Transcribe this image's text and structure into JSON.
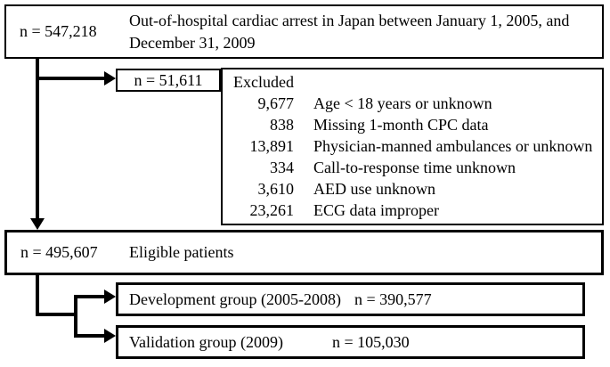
{
  "colors": {
    "border": "#000000",
    "text": "#000000",
    "background": "#ffffff"
  },
  "flow": {
    "top_box": {
      "n_label": "n = 547,218",
      "description": "Out-of-hospital cardiac arrest in Japan between January 1, 2005, and December 31, 2009"
    },
    "excluded_n_box": {
      "n_label": "n = 51,611"
    },
    "excluded_box": {
      "title": "Excluded",
      "items": [
        {
          "count": "9,677",
          "reason": "Age < 18 years or unknown"
        },
        {
          "count": "838",
          "reason": "Missing 1-month CPC data"
        },
        {
          "count": "13,891",
          "reason": "Physician-manned ambulances or unknown"
        },
        {
          "count": "334",
          "reason": "Call-to-response time unknown"
        },
        {
          "count": "3,610",
          "reason": "AED use unknown"
        },
        {
          "count": "23,261",
          "reason": "ECG data improper"
        }
      ]
    },
    "eligible_box": {
      "n_label": "n = 495,607",
      "description": "Eligible patients"
    },
    "development_box": {
      "label": "Development group (2005-2008)",
      "n_label": "n = 390,577"
    },
    "validation_box": {
      "label": "Validation group (2009)",
      "n_label": "n = 105,030"
    }
  }
}
